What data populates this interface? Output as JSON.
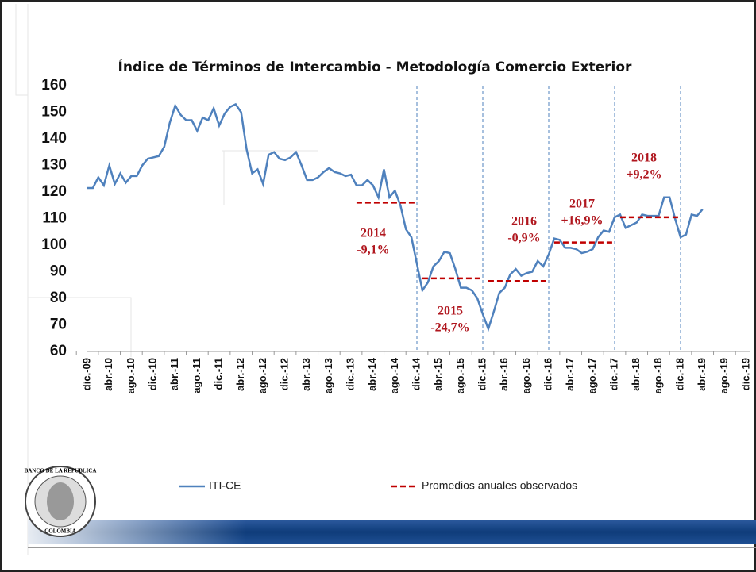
{
  "chart_data": {
    "type": "line",
    "title": "Índice de Términos de Intercambio - Metodología Comercio Exterior",
    "categories": [
      "dic.-09",
      null,
      null,
      null,
      "abr.-10",
      null,
      null,
      null,
      "ago.-10",
      null,
      null,
      null,
      "dic.-10",
      null,
      null,
      null,
      "abr.-11",
      null,
      null,
      null,
      "ago.-11",
      null,
      null,
      null,
      "dic.-11",
      null,
      null,
      null,
      "abr.-12",
      null,
      null,
      null,
      "ago.-12",
      null,
      null,
      null,
      "dic.-12",
      null,
      null,
      null,
      "abr.-13",
      null,
      null,
      null,
      "ago.-13",
      null,
      null,
      null,
      "dic.-13",
      null,
      null,
      null,
      "abr.-14",
      null,
      null,
      null,
      "ago.-14",
      null,
      null,
      null,
      "dic.-14",
      null,
      null,
      null,
      "abr.-15",
      null,
      null,
      null,
      "ago.-15",
      null,
      null,
      null,
      "dic.-15",
      null,
      null,
      null,
      "abr.-16",
      null,
      null,
      null,
      "ago.-16",
      null,
      null,
      null,
      "dic.-16",
      null,
      null,
      null,
      "abr.-17",
      null,
      null,
      null,
      "ago.-17",
      null,
      null,
      null,
      "dic.-17",
      null,
      null,
      null,
      "abr.-18",
      null,
      null,
      null,
      "ago.-18",
      null,
      null,
      null,
      "dic.-18",
      null,
      null,
      null,
      "abr.-19",
      null,
      null,
      null,
      "ago.-19",
      null,
      null,
      null,
      "dic.-19"
    ],
    "series": [
      {
        "name": "ITI-CE",
        "color": "#4f81bd",
        "values": [
          121.5,
          121.5,
          125.5,
          122.5,
          130,
          123,
          127,
          123.5,
          126,
          126,
          130,
          132.5,
          133,
          133.5,
          137,
          146,
          152.5,
          149,
          147,
          147,
          143,
          148,
          147,
          151.5,
          145,
          149.5,
          152,
          153,
          150,
          136,
          127,
          128.5,
          123,
          134,
          135,
          132.5,
          132,
          133,
          135,
          130,
          124.5,
          124.5,
          125.5,
          127.5,
          129,
          127.5,
          127,
          126,
          126.5,
          122.5,
          122.5,
          124.5,
          122.5,
          118,
          128.5,
          118,
          120.5,
          115,
          106,
          103,
          93,
          83,
          86,
          92,
          94,
          97.5,
          97,
          91,
          84,
          84,
          83,
          80,
          74,
          68.5,
          75,
          82,
          84,
          89,
          91,
          88.5,
          89.5,
          90,
          94,
          92,
          96.5,
          102.5,
          102,
          99,
          99,
          98.5,
          97,
          97.5,
          98.5,
          103,
          105.5,
          105,
          110.5,
          111.5,
          106.5,
          107.5,
          108.5,
          111.5,
          111,
          111,
          111,
          118,
          118,
          110,
          103,
          104,
          111.5,
          111,
          113.5,
          null,
          null,
          null,
          null,
          null,
          null,
          null,
          null
        ]
      },
      {
        "name": "Promedios anuales observados",
        "color": "#c00000",
        "dashed": true,
        "values": [
          null,
          null,
          null,
          null,
          null,
          null,
          null,
          null,
          null,
          null,
          null,
          null,
          null,
          null,
          null,
          null,
          null,
          null,
          null,
          null,
          null,
          null,
          null,
          null,
          null,
          null,
          null,
          null,
          null,
          null,
          null,
          null,
          null,
          null,
          null,
          null,
          null,
          null,
          null,
          null,
          null,
          null,
          null,
          null,
          null,
          null,
          null,
          null,
          null,
          116,
          116,
          116,
          116,
          116,
          116,
          116,
          116,
          116,
          116,
          116,
          116,
          87.5,
          87.5,
          87.5,
          87.5,
          87.5,
          87.5,
          87.5,
          87.5,
          87.5,
          87.5,
          87.5,
          87.5,
          86.5,
          86.5,
          86.5,
          86.5,
          86.5,
          86.5,
          86.5,
          86.5,
          86.5,
          86.5,
          86.5,
          86.5,
          101,
          101,
          101,
          101,
          101,
          101,
          101,
          101,
          101,
          101,
          101,
          101,
          110.5,
          110.5,
          110.5,
          110.5,
          110.5,
          110.5,
          110.5,
          110.5,
          110.5,
          110.5,
          110.5,
          110.5,
          null,
          null,
          null,
          null,
          null,
          null,
          null,
          null,
          null,
          null,
          null,
          null
        ]
      }
    ],
    "ylim": [
      60,
      160
    ],
    "yticks": [
      60,
      70,
      80,
      90,
      100,
      110,
      120,
      130,
      140,
      150,
      160
    ],
    "grid": false,
    "annotations": [
      {
        "year": "2014",
        "change": "-9,1%"
      },
      {
        "year": "2015",
        "change": "-24,7%"
      },
      {
        "year": "2016",
        "change": "-0,9%"
      },
      {
        "year": "2017",
        "change": "+16,9%"
      },
      {
        "year": "2018",
        "change": "+9,2%"
      }
    ]
  },
  "logo": {
    "top": "BANCO DE LA REPUBLICA",
    "bottom": "COLOMBIA"
  }
}
